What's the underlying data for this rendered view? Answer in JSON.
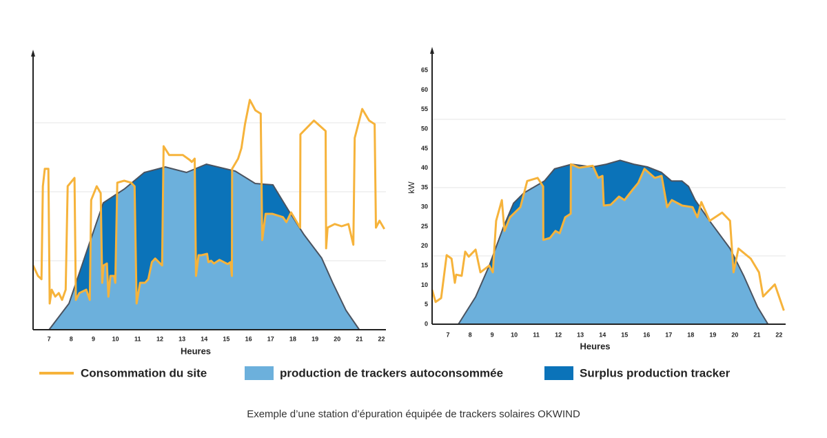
{
  "chart_data": [
    {
      "type": "area",
      "xlabel": "Heures",
      "xlim": [
        6.28,
        22.2
      ],
      "ylim": [
        0,
        100
      ],
      "xticks": [
        7,
        8,
        9,
        10,
        11,
        12,
        13,
        14,
        15,
        16,
        17,
        18,
        19,
        20,
        21,
        22
      ],
      "ygrid": [
        25,
        50,
        75
      ],
      "production": {
        "x": [
          7.0,
          7.9,
          8.85,
          9.45,
          10.4,
          11.3,
          12.25,
          13.2,
          14.1,
          15.4,
          16.3,
          17.1,
          17.9,
          18.5,
          19.3,
          19.8,
          20.4,
          21.0
        ],
        "values": [
          0,
          9.5,
          32,
          46,
          51,
          57,
          59,
          57,
          60,
          57.5,
          53,
          52.5,
          42,
          34.5,
          26,
          17,
          7,
          0
        ]
      },
      "consumption": {
        "x": [
          6.28,
          6.5,
          6.66,
          6.72,
          6.81,
          6.97,
          7.03,
          7.12,
          7.28,
          7.44,
          7.59,
          7.75,
          7.84,
          8.15,
          8.21,
          8.37,
          8.68,
          8.84,
          8.9,
          9.15,
          9.33,
          9.4,
          9.46,
          9.61,
          9.68,
          9.77,
          9.93,
          9.99,
          10.08,
          10.39,
          10.7,
          10.86,
          10.95,
          11.11,
          11.33,
          11.48,
          11.64,
          11.79,
          12.1,
          12.17,
          12.42,
          12.57,
          13.04,
          13.35,
          13.44,
          13.57,
          13.63,
          13.75,
          13.88,
          14.13,
          14.19,
          14.31,
          14.44,
          14.69,
          15.06,
          15.19,
          15.25,
          15.26,
          15.53,
          15.68,
          15.84,
          16.06,
          16.31,
          16.55,
          16.62,
          16.77,
          17.08,
          17.55,
          17.71,
          17.92,
          18.33,
          18.34,
          18.95,
          19.48,
          19.5,
          19.57,
          19.89,
          20.2,
          20.51,
          20.73,
          20.79,
          21.13,
          21.44,
          21.69,
          21.75,
          21.91,
          22.13
        ],
        "values": [
          23.3,
          19.5,
          18.3,
          52,
          58.3,
          58.3,
          9.5,
          14.5,
          12,
          13.3,
          10.8,
          14.5,
          52,
          55,
          10.8,
          13.3,
          14.5,
          10.8,
          47,
          52,
          49.5,
          17,
          23.3,
          24,
          12,
          19.5,
          19.5,
          17,
          53.3,
          54,
          53.3,
          52,
          9.5,
          17,
          17,
          18.3,
          24.5,
          25.8,
          23.3,
          66.5,
          63.3,
          63.3,
          63.3,
          61.5,
          60.8,
          62,
          19.5,
          27,
          27,
          27.5,
          24.5,
          25,
          24,
          25.3,
          23.8,
          24.5,
          19.5,
          58.3,
          62,
          65.8,
          74.5,
          83.3,
          79.5,
          78.3,
          32.5,
          42,
          42,
          40.8,
          39,
          42.5,
          37,
          70.8,
          75.8,
          72,
          29.5,
          37,
          38.3,
          37.5,
          38.3,
          30.8,
          69.5,
          80,
          75.8,
          74.5,
          37,
          39.5,
          36.5
        ]
      }
    },
    {
      "type": "area",
      "xlabel": "Heures",
      "ylabel": "kW",
      "xlim": [
        6.28,
        22.3
      ],
      "ylim": [
        0,
        70
      ],
      "xticks": [
        7,
        8,
        9,
        10,
        11,
        12,
        13,
        14,
        15,
        16,
        17,
        18,
        19,
        20,
        21,
        22
      ],
      "yticks": [
        0,
        5,
        10,
        15,
        20,
        25,
        30,
        35,
        40,
        45,
        50,
        55,
        60,
        65
      ],
      "ygrid": [
        17.5,
        35,
        52.5
      ],
      "production": {
        "x": [
          7.47,
          8.25,
          8.87,
          9.5,
          9.97,
          10.43,
          11.37,
          11.83,
          12.6,
          13.55,
          14.17,
          14.8,
          15.42,
          16.04,
          16.67,
          17.13,
          17.6,
          17.9,
          18.2,
          18.85,
          19.78,
          20.4,
          21.03,
          21.5
        ],
        "values": [
          0,
          7,
          15,
          24.7,
          31,
          33.6,
          36.7,
          39.8,
          41,
          40.3,
          41,
          42,
          41,
          40.3,
          38.9,
          36.7,
          36.7,
          35.3,
          31.8,
          26.5,
          19.4,
          12.4,
          4.4,
          0
        ]
      },
      "consumption": {
        "x": [
          6.28,
          6.44,
          6.69,
          6.94,
          7.16,
          7.31,
          7.37,
          7.62,
          7.78,
          7.94,
          8.25,
          8.47,
          8.87,
          9.03,
          9.18,
          9.44,
          9.56,
          9.81,
          10.28,
          10.59,
          11.06,
          11.31,
          11.32,
          11.62,
          11.87,
          12.06,
          12.31,
          12.56,
          12.57,
          12.94,
          13.56,
          13.81,
          14.0,
          14.06,
          14.37,
          14.75,
          15.0,
          15.37,
          15.62,
          15.9,
          16.37,
          16.68,
          16.93,
          17.14,
          17.61,
          18.08,
          18.3,
          18.48,
          18.86,
          19.42,
          19.78,
          19.94,
          20.16,
          20.72,
          21.09,
          21.28,
          21.81,
          22.22
        ],
        "values": [
          8.8,
          5.7,
          6.7,
          17.7,
          16.8,
          10.6,
          12.7,
          12.4,
          18.6,
          17.3,
          19.1,
          13.3,
          15,
          13.3,
          26.5,
          31.8,
          23.9,
          27.4,
          30,
          36.7,
          37.5,
          35.3,
          21.6,
          22.1,
          23.9,
          23.3,
          27.4,
          28.3,
          41,
          40.1,
          40.6,
          37.5,
          38,
          30.4,
          30.6,
          32.7,
          31.8,
          34.5,
          36.2,
          39.8,
          37.5,
          38,
          30,
          31.8,
          30.4,
          30,
          27.4,
          31.3,
          26.5,
          28.6,
          26.5,
          13.3,
          19.4,
          16.8,
          13.3,
          7.1,
          10.2,
          3.5
        ]
      }
    }
  ],
  "legend": {
    "consumption": {
      "name": "Consommation du site",
      "color": "#f6b33b"
    },
    "production": {
      "name": "production de trackers autoconsommée",
      "color": "#6cb0dc"
    },
    "surplus": {
      "name": "Surplus production tracker",
      "color": "#0b73b9"
    }
  },
  "caption": "Exemple d’une station d’épuration équipée de trackers solaires OKWIND"
}
